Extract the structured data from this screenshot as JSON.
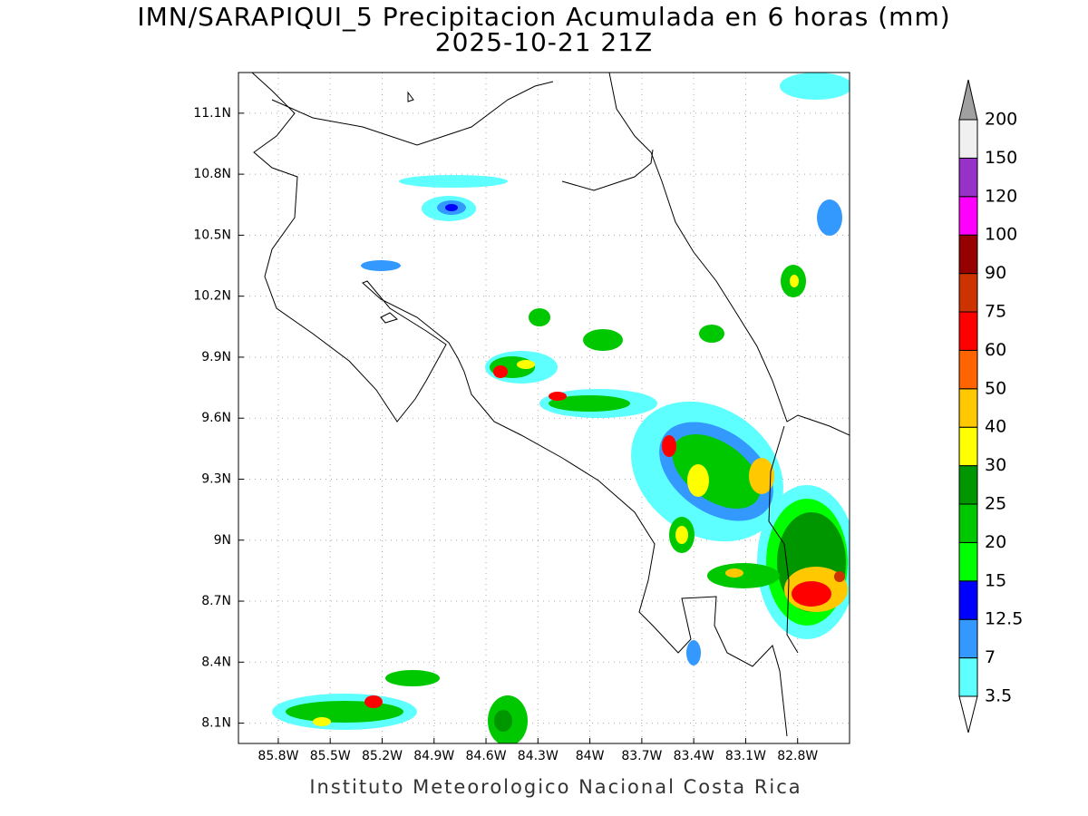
{
  "map": {
    "title": "IMN/SARAPIQUI_5 Precipitacion Acumulada en 6 horas (mm)",
    "subtitle": "2025-10-21 21Z",
    "footer": "Instituto Meteorologico Nacional Costa Rica",
    "xlim": [
      -86.03,
      -82.5
    ],
    "ylim": [
      8.0,
      11.3
    ],
    "xticks": [
      {
        "value": -85.8,
        "label": "85.8W"
      },
      {
        "value": -85.5,
        "label": "85.5W"
      },
      {
        "value": -85.2,
        "label": "85.2W"
      },
      {
        "value": -84.9,
        "label": "84.9W"
      },
      {
        "value": -84.6,
        "label": "84.6W"
      },
      {
        "value": -84.3,
        "label": "84.3W"
      },
      {
        "value": -84,
        "label": "84W"
      },
      {
        "value": -83.7,
        "label": "83.7W"
      },
      {
        "value": -83.4,
        "label": "83.4W"
      },
      {
        "value": -83.1,
        "label": "83.1W"
      },
      {
        "value": -82.8,
        "label": "82.8W"
      }
    ],
    "yticks": [
      {
        "value": 11.1,
        "label": "11.1N"
      },
      {
        "value": 10.8,
        "label": "10.8N"
      },
      {
        "value": 10.5,
        "label": "10.5N"
      },
      {
        "value": 10.2,
        "label": "10.2N"
      },
      {
        "value": 9.9,
        "label": "9.9N"
      },
      {
        "value": 9.6,
        "label": "9.6N"
      },
      {
        "value": 9.3,
        "label": "9.3N"
      },
      {
        "value": 9,
        "label": "9N"
      },
      {
        "value": 8.7,
        "label": "8.7N"
      },
      {
        "value": 8.4,
        "label": "8.4N"
      },
      {
        "value": 8.1,
        "label": "8.1N"
      }
    ],
    "grid": true,
    "colorbar": {
      "levels": [
        3.5,
        7,
        12.5,
        15,
        20,
        25,
        30,
        40,
        50,
        60,
        75,
        90,
        100,
        120,
        150,
        200
      ],
      "colors": [
        "#5effff",
        "#3399ff",
        "#0000ff",
        "#00ff00",
        "#00c800",
        "#009600",
        "#ffff00",
        "#ffc800",
        "#ff6400",
        "#ff0000",
        "#cc3300",
        "#960000",
        "#ff00ff",
        "#9632c8",
        "#f0f0f0"
      ],
      "under_color": "#ffffff",
      "over_color": "#a0a0a0"
    }
  }
}
